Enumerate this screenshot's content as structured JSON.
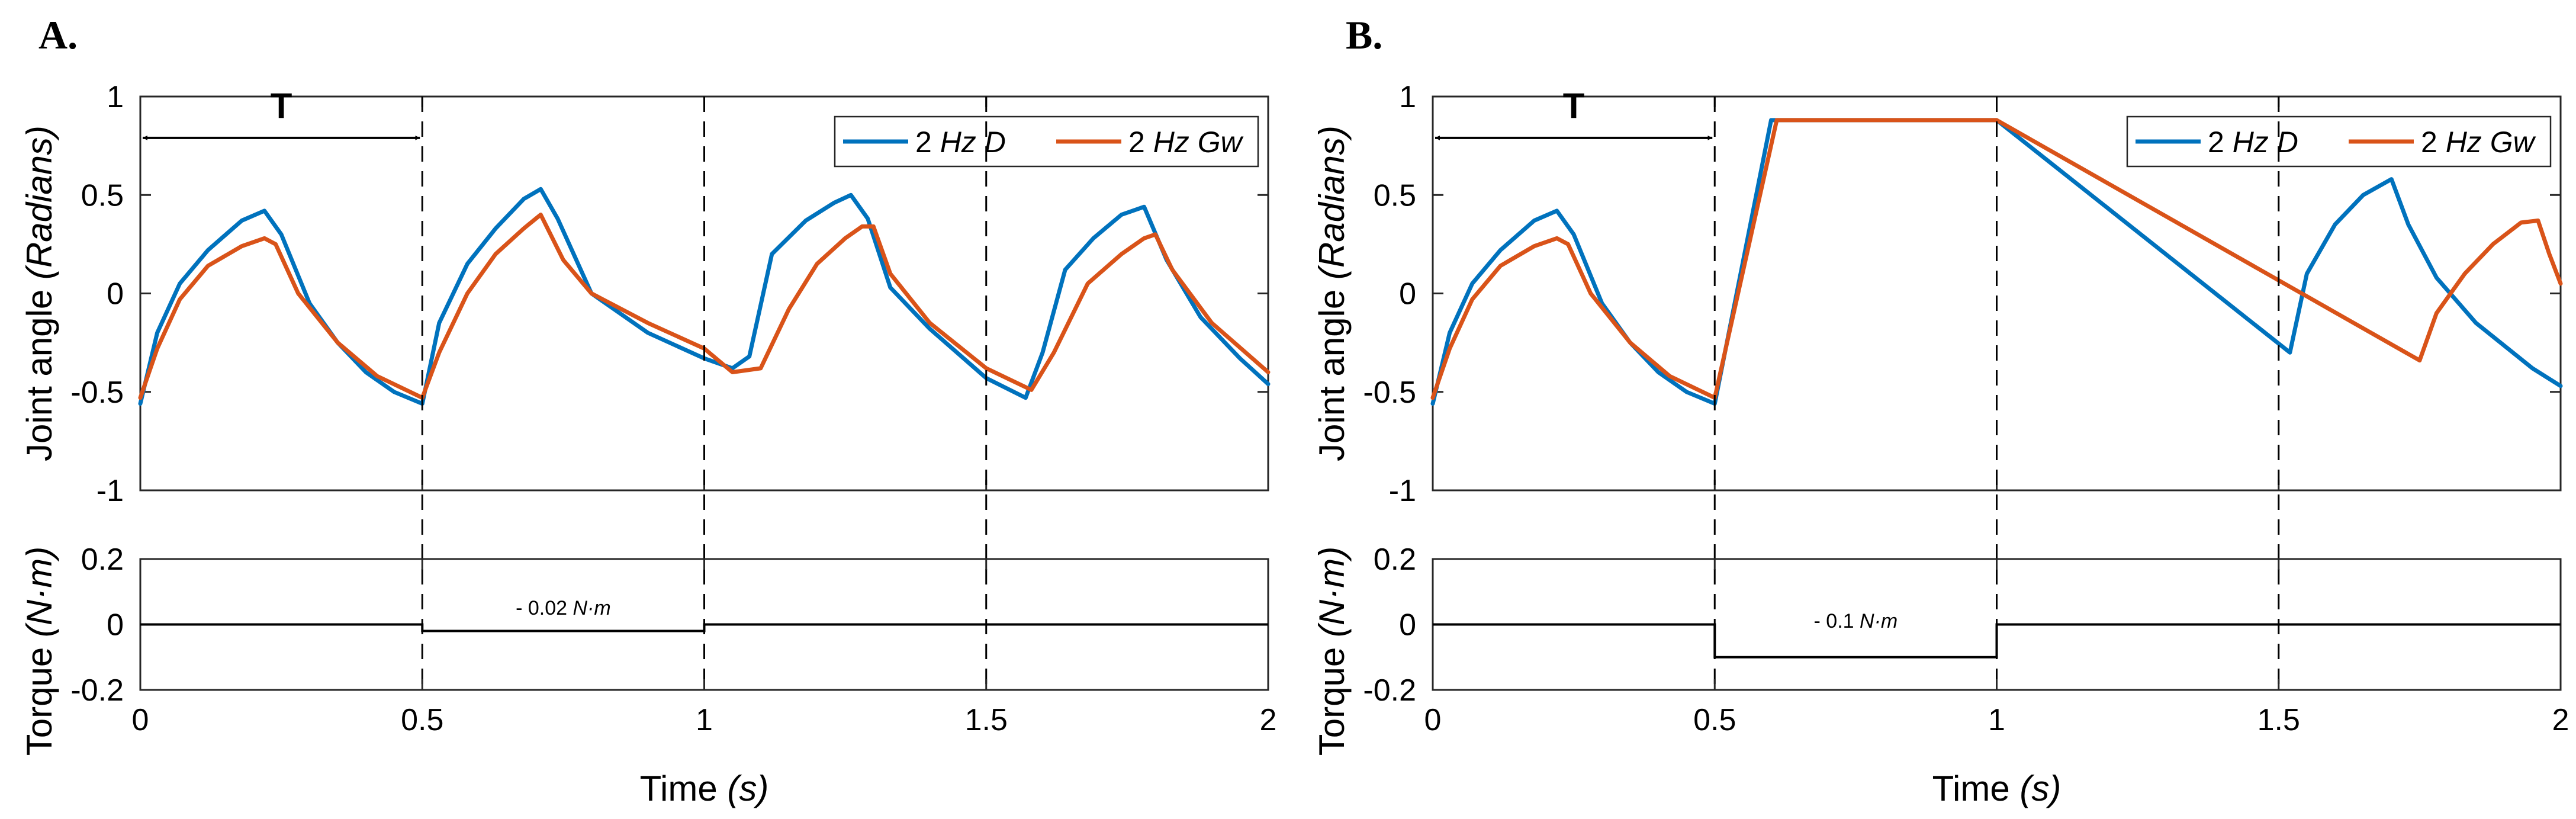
{
  "chart_data": [
    {
      "panel": "A.",
      "top": {
        "type": "line",
        "xlim": [
          0,
          2
        ],
        "ylim": [
          -1,
          1
        ],
        "xticks": [
          "0",
          "0.5",
          "1",
          "1.5",
          "2"
        ],
        "yticks": [
          "-1",
          "-0.5",
          "0",
          "0.5",
          "1"
        ],
        "ylabel_main": "Joint angle",
        "ylabel_unit": "(Radians)",
        "period_label": "T",
        "vlines": [
          0.5,
          1.0,
          1.5
        ],
        "series": [
          {
            "name": "2 Hz D",
            "color": "#0072bd",
            "x": [
              0,
              0.03,
              0.07,
              0.12,
              0.18,
              0.22,
              0.25,
              0.3,
              0.35,
              0.4,
              0.45,
              0.5,
              0.53,
              0.58,
              0.63,
              0.68,
              0.71,
              0.74,
              0.8,
              0.9,
              1.0,
              1.05,
              1.08,
              1.12,
              1.18,
              1.23,
              1.26,
              1.29,
              1.33,
              1.4,
              1.5,
              1.57,
              1.6,
              1.64,
              1.69,
              1.74,
              1.78,
              1.82,
              1.88,
              1.95,
              2.0
            ],
            "y": [
              -0.56,
              -0.2,
              0.05,
              0.22,
              0.37,
              0.42,
              0.3,
              -0.05,
              -0.25,
              -0.4,
              -0.5,
              -0.56,
              -0.15,
              0.15,
              0.33,
              0.48,
              0.53,
              0.38,
              0.0,
              -0.2,
              -0.33,
              -0.38,
              -0.32,
              0.2,
              0.37,
              0.46,
              0.5,
              0.38,
              0.03,
              -0.18,
              -0.43,
              -0.53,
              -0.3,
              0.12,
              0.28,
              0.4,
              0.44,
              0.17,
              -0.12,
              -0.33,
              -0.46
            ]
          },
          {
            "name": "2 Hz Gw",
            "color": "#d95319",
            "x": [
              0,
              0.03,
              0.07,
              0.12,
              0.18,
              0.22,
              0.24,
              0.28,
              0.35,
              0.42,
              0.5,
              0.53,
              0.58,
              0.63,
              0.68,
              0.71,
              0.75,
              0.8,
              0.9,
              1.0,
              1.05,
              1.1,
              1.15,
              1.2,
              1.25,
              1.28,
              1.3,
              1.33,
              1.4,
              1.5,
              1.58,
              1.62,
              1.68,
              1.74,
              1.78,
              1.8,
              1.83,
              1.9,
              2.0
            ],
            "y": [
              -0.53,
              -0.28,
              -0.03,
              0.14,
              0.24,
              0.28,
              0.25,
              0.0,
              -0.25,
              -0.42,
              -0.53,
              -0.3,
              0.0,
              0.2,
              0.33,
              0.4,
              0.17,
              0.0,
              -0.15,
              -0.28,
              -0.4,
              -0.38,
              -0.08,
              0.15,
              0.28,
              0.34,
              0.34,
              0.1,
              -0.15,
              -0.38,
              -0.49,
              -0.3,
              0.05,
              0.2,
              0.28,
              0.3,
              0.12,
              -0.15,
              -0.4
            ]
          }
        ],
        "legend": "top-right"
      },
      "bottom": {
        "type": "line",
        "xlim": [
          0,
          2
        ],
        "ylim": [
          -0.2,
          0.2
        ],
        "xticks": [
          "0",
          "0.5",
          "1",
          "1.5",
          "2"
        ],
        "yticks": [
          "-0.2",
          "0",
          "0.2"
        ],
        "xlabel_main": "Time",
        "xlabel_unit": "(s)",
        "ylabel_main": "Torque",
        "ylabel_unit": "(N·m)",
        "annotation": "- 0.02",
        "annotation_unit": "N·m",
        "annotation_x": 0.75,
        "annotation_y": 0.03,
        "torque": {
          "x": [
            0,
            0.5,
            0.5,
            1.0,
            1.0,
            2.0
          ],
          "y": [
            0,
            0,
            -0.02,
            -0.02,
            0,
            0
          ]
        }
      }
    },
    {
      "panel": "B.",
      "top": {
        "type": "line",
        "xlim": [
          0,
          2
        ],
        "ylim": [
          -1,
          1
        ],
        "xticks": [
          "0",
          "0.5",
          "1",
          "1.5",
          "2"
        ],
        "yticks": [
          "-1",
          "-0.5",
          "0",
          "0.5",
          "1"
        ],
        "ylabel_main": "Joint angle",
        "ylabel_unit": "(Radians)",
        "period_label": "T",
        "vlines": [
          0.5,
          1.0,
          1.5
        ],
        "series": [
          {
            "name": "2 Hz D",
            "color": "#0072bd",
            "x": [
              0,
              0.03,
              0.07,
              0.12,
              0.18,
              0.22,
              0.25,
              0.3,
              0.35,
              0.4,
              0.45,
              0.5,
              0.6,
              1.0,
              1.52,
              1.55,
              1.6,
              1.65,
              1.7,
              1.73,
              1.78,
              1.85,
              1.95,
              2.0
            ],
            "y": [
              -0.56,
              -0.2,
              0.05,
              0.22,
              0.37,
              0.42,
              0.3,
              -0.05,
              -0.25,
              -0.4,
              -0.5,
              -0.56,
              0.88,
              0.88,
              -0.3,
              0.1,
              0.35,
              0.5,
              0.58,
              0.35,
              0.08,
              -0.15,
              -0.38,
              -0.47
            ]
          },
          {
            "name": "2 Hz Gw",
            "color": "#d95319",
            "x": [
              0,
              0.03,
              0.07,
              0.12,
              0.18,
              0.22,
              0.24,
              0.28,
              0.35,
              0.42,
              0.5,
              0.61,
              1.0,
              1.75,
              1.78,
              1.83,
              1.88,
              1.93,
              1.96,
              1.98,
              2.0
            ],
            "y": [
              -0.53,
              -0.28,
              -0.03,
              0.14,
              0.24,
              0.28,
              0.25,
              0.0,
              -0.25,
              -0.42,
              -0.53,
              0.88,
              0.88,
              -0.34,
              -0.1,
              0.1,
              0.25,
              0.36,
              0.37,
              0.2,
              0.05
            ]
          }
        ],
        "legend": "top-right"
      },
      "bottom": {
        "type": "line",
        "xlim": [
          0,
          2
        ],
        "ylim": [
          -0.2,
          0.2
        ],
        "xticks": [
          "0",
          "0.5",
          "1",
          "1.5",
          "2"
        ],
        "yticks": [
          "-0.2",
          "0",
          "0.2"
        ],
        "xlabel_main": "Time",
        "xlabel_unit": "(s)",
        "ylabel_main": "Torque",
        "ylabel_unit": "(N·m)",
        "annotation": "- 0.1",
        "annotation_unit": "N·m",
        "annotation_x": 0.75,
        "annotation_y": -0.01,
        "torque": {
          "x": [
            0,
            0.5,
            0.5,
            1.0,
            1.0,
            2.0
          ],
          "y": [
            0,
            0,
            -0.1,
            -0.1,
            0,
            0
          ]
        }
      }
    }
  ]
}
